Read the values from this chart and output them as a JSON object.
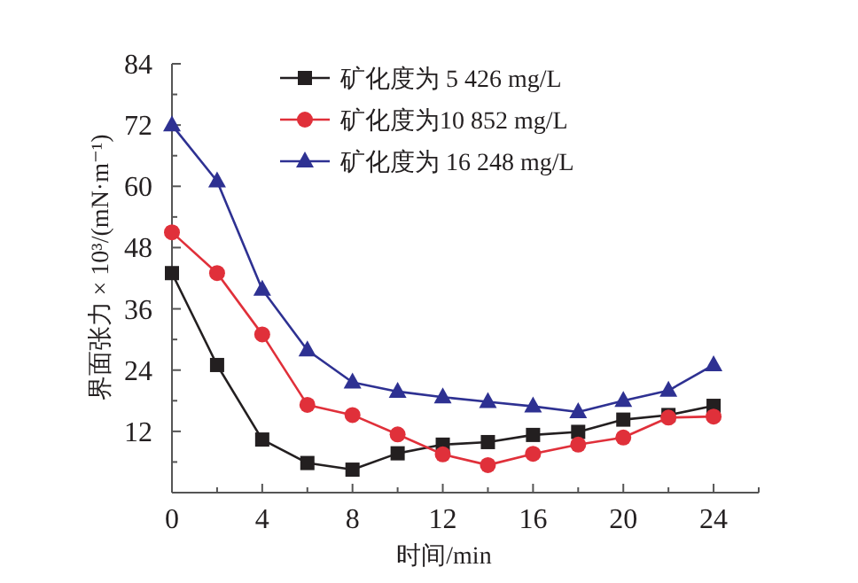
{
  "chart_data": {
    "type": "line",
    "xlabel": "时间/min",
    "ylabel": "界面张力 × 10³/(mN·m⁻¹)",
    "x": [
      0,
      2,
      4,
      6,
      8,
      10,
      12,
      14,
      16,
      18,
      20,
      22,
      24
    ],
    "series": [
      {
        "name": "矿化度为 5 426 mg/L",
        "color": "#231f20",
        "marker": "square",
        "values": [
          43,
          25,
          10.4,
          5.8,
          4.5,
          7.7,
          9.4,
          9.9,
          11.3,
          11.9,
          14.3,
          15.2,
          17
        ]
      },
      {
        "name": "矿化度为10 852 mg/L",
        "color": "#e0303a",
        "marker": "circle",
        "values": [
          51,
          43,
          31,
          17.2,
          15.2,
          11.4,
          7.5,
          5.4,
          7.6,
          9.4,
          10.8,
          14.7,
          14.9
        ]
      },
      {
        "name": "矿化度为 16 248 mg/L",
        "color": "#2e3192",
        "marker": "triangle",
        "values": [
          72,
          61,
          39.8,
          27.9,
          21.6,
          19.8,
          18.7,
          17.8,
          16.9,
          15.8,
          18,
          20,
          25
        ]
      }
    ],
    "xlim": [
      0,
      26
    ],
    "ylim": [
      0,
      84
    ],
    "xticks": [
      0,
      {
        "value": 2,
        "label": null
      },
      4,
      {
        "value": 6,
        "label": null
      },
      8,
      {
        "value": 10,
        "label": null
      },
      12,
      {
        "value": 14,
        "label": null
      },
      16,
      {
        "value": 18,
        "label": null
      },
      20,
      {
        "value": 22,
        "label": null
      },
      24,
      {
        "value": 26,
        "label": null
      }
    ],
    "yticks": [
      {
        "value": 6,
        "label": null
      },
      12,
      {
        "value": 18,
        "label": null
      },
      24,
      {
        "value": 30,
        "label": null
      },
      36,
      {
        "value": 42,
        "label": null
      },
      48,
      {
        "value": 54,
        "label": null
      },
      60,
      {
        "value": 66,
        "label": null
      },
      72,
      {
        "value": 78,
        "label": null
      },
      84
    ],
    "legend": "top",
    "line_style": "solid"
  }
}
